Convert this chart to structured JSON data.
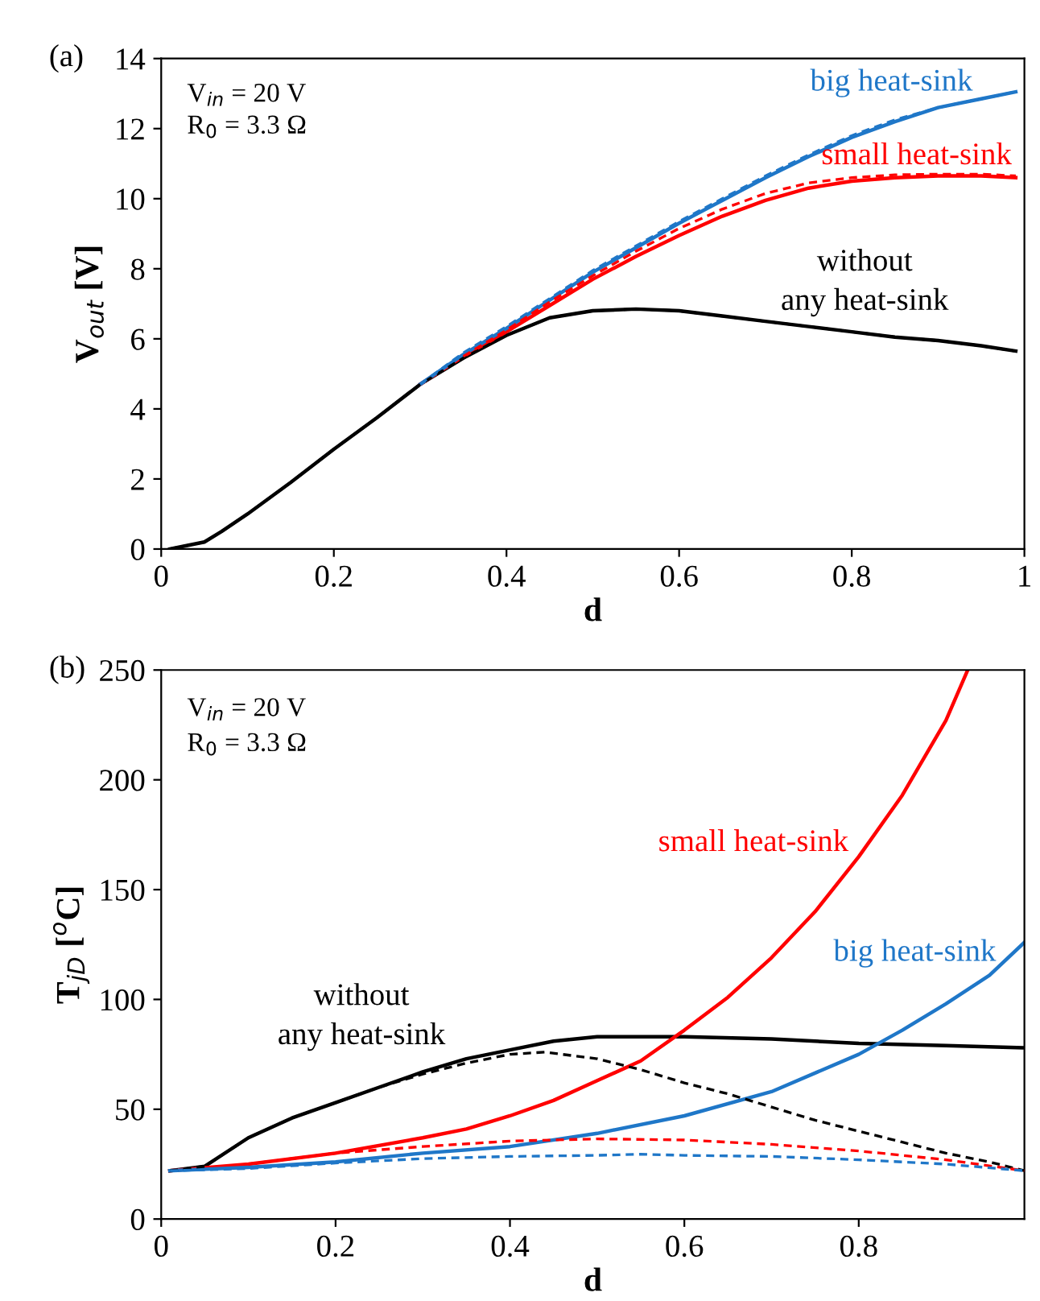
{
  "chart_data": [
    {
      "type": "line",
      "title": "(a)",
      "xlabel": "d",
      "ylabel": "V$_{out}$ [V]",
      "xlim": [
        0,
        1
      ],
      "xticks": [
        0,
        0.2,
        0.4,
        0.6,
        0.8,
        1
      ],
      "ylim": [
        0,
        14
      ],
      "yticks": [
        0,
        2,
        4,
        6,
        8,
        10,
        12,
        14
      ],
      "grid": false,
      "legend": false,
      "annotations": [
        "V$_{in}$ = 20 V",
        "R$_{0}$ = 3.3 Ω"
      ],
      "series": [
        {
          "name": "without\nany heat-sink",
          "color": "#000000",
          "line_style": "solid",
          "x": [
            0.01,
            0.05,
            0.07,
            0.1,
            0.15,
            0.2,
            0.25,
            0.3,
            0.35,
            0.4,
            0.45,
            0.5,
            0.55,
            0.6,
            0.65,
            0.7,
            0.75,
            0.8,
            0.85,
            0.9,
            0.95,
            0.99
          ],
          "values": [
            0,
            0.2,
            0.5,
            1.0,
            1.9,
            2.85,
            3.75,
            4.7,
            5.45,
            6.1,
            6.6,
            6.8,
            6.85,
            6.8,
            6.65,
            6.5,
            6.35,
            6.2,
            6.05,
            5.95,
            5.8,
            5.65
          ]
        },
        {
          "color": "#000000",
          "line_style": "dashed",
          "x": [
            0.01,
            0.05,
            0.07,
            0.1,
            0.15,
            0.2,
            0.25,
            0.3,
            0.35,
            0.4,
            0.45,
            0.5,
            0.55,
            0.6,
            0.65,
            0.7,
            0.75,
            0.8,
            0.85,
            0.9,
            0.95,
            0.99
          ],
          "values": [
            0,
            0.2,
            0.5,
            1.0,
            1.9,
            2.85,
            3.75,
            4.7,
            5.45,
            6.1,
            6.6,
            6.8,
            6.85,
            6.8,
            6.65,
            6.5,
            6.35,
            6.2,
            6.05,
            5.95,
            5.8,
            5.65
          ]
        },
        {
          "name": "small heat-sink",
          "color": "#ff0000",
          "line_style": "solid",
          "x": [
            0.3,
            0.35,
            0.4,
            0.45,
            0.5,
            0.55,
            0.6,
            0.65,
            0.7,
            0.75,
            0.8,
            0.85,
            0.9,
            0.95,
            0.99
          ],
          "values": [
            4.7,
            5.5,
            6.2,
            6.95,
            7.7,
            8.35,
            8.95,
            9.5,
            9.95,
            10.3,
            10.5,
            10.6,
            10.65,
            10.65,
            10.6
          ]
        },
        {
          "color": "#ff0000",
          "line_style": "dashed",
          "x": [
            0.35,
            0.4,
            0.45,
            0.5,
            0.55,
            0.6,
            0.65,
            0.7,
            0.75,
            0.8,
            0.85,
            0.9,
            0.95,
            0.99
          ],
          "values": [
            5.5,
            6.25,
            7.05,
            7.8,
            8.5,
            9.15,
            9.7,
            10.15,
            10.45,
            10.6,
            10.68,
            10.7,
            10.7,
            10.65
          ]
        },
        {
          "name": "big heat-sink",
          "color": "#1f77c8",
          "line_style": "solid",
          "x": [
            0.3,
            0.35,
            0.4,
            0.45,
            0.5,
            0.55,
            0.6,
            0.65,
            0.7,
            0.75,
            0.8,
            0.85,
            0.9,
            0.95,
            0.99
          ],
          "values": [
            4.7,
            5.55,
            6.3,
            7.1,
            7.9,
            8.6,
            9.3,
            9.95,
            10.6,
            11.2,
            11.75,
            12.2,
            12.6,
            12.85,
            13.05
          ]
        },
        {
          "color": "#1f77c8",
          "line_style": "dashed",
          "x": [
            0.3,
            0.35,
            0.4,
            0.45,
            0.5,
            0.55,
            0.6,
            0.65,
            0.7,
            0.75,
            0.8,
            0.85,
            0.9,
            0.95,
            0.99
          ],
          "values": [
            4.7,
            5.6,
            6.35,
            7.15,
            7.95,
            8.65,
            9.35,
            10.0,
            10.65,
            11.25,
            11.8,
            12.25,
            12.6,
            12.85,
            13.05
          ]
        }
      ]
    },
    {
      "type": "line",
      "title": "(b)",
      "xlabel": "d",
      "ylabel": "T$_{jD}$ [$^{o}$C]",
      "xlim": [
        0,
        0.99
      ],
      "xticks": [
        0,
        0.2,
        0.4,
        0.6,
        0.8
      ],
      "ylim": [
        0,
        250
      ],
      "yticks": [
        0,
        50,
        100,
        150,
        200,
        250
      ],
      "grid": false,
      "legend": false,
      "annotations": [
        "V$_{in}$ = 20 V",
        "R$_{0}$ = 3.3 Ω"
      ],
      "series": [
        {
          "name": "without\nany heat-sink",
          "color": "#000000",
          "line_style": "solid",
          "x": [
            0.01,
            0.05,
            0.1,
            0.15,
            0.2,
            0.25,
            0.3,
            0.35,
            0.4,
            0.45,
            0.5,
            0.6,
            0.7,
            0.8,
            0.9,
            0.99
          ],
          "values": [
            22,
            24,
            37,
            46,
            53,
            60,
            67,
            73,
            77,
            81,
            83,
            83,
            82,
            80,
            79,
            78
          ]
        },
        {
          "color": "#000000",
          "line_style": "dashed",
          "x": [
            0.01,
            0.05,
            0.1,
            0.15,
            0.2,
            0.25,
            0.3,
            0.35,
            0.4,
            0.44,
            0.5,
            0.55,
            0.6,
            0.65,
            0.7,
            0.75,
            0.8,
            0.85,
            0.9,
            0.95,
            0.99
          ],
          "values": [
            22,
            24,
            37,
            46,
            53,
            60,
            66,
            71,
            75,
            76,
            73,
            68,
            62,
            57,
            51,
            45,
            40,
            35,
            30,
            26,
            22
          ]
        },
        {
          "name": "small heat-sink",
          "color": "#ff0000",
          "line_style": "solid",
          "x": [
            0.01,
            0.1,
            0.2,
            0.3,
            0.35,
            0.4,
            0.45,
            0.5,
            0.55,
            0.6,
            0.65,
            0.7,
            0.75,
            0.8,
            0.85,
            0.9,
            0.925
          ],
          "values": [
            22,
            25,
            30,
            37,
            41,
            47,
            54,
            63,
            72,
            86,
            101,
            119,
            140,
            165,
            193,
            227,
            250
          ]
        },
        {
          "color": "#ff0000",
          "line_style": "dashed",
          "x": [
            0.1,
            0.2,
            0.3,
            0.4,
            0.5,
            0.6,
            0.7,
            0.8,
            0.9,
            0.99
          ],
          "values": [
            25,
            30,
            33,
            35.5,
            36.5,
            36,
            34,
            31,
            27,
            22
          ]
        },
        {
          "name": "big heat-sink",
          "color": "#1f77c8",
          "line_style": "solid",
          "x": [
            0.01,
            0.1,
            0.2,
            0.3,
            0.4,
            0.5,
            0.6,
            0.7,
            0.8,
            0.85,
            0.9,
            0.95,
            0.99
          ],
          "values": [
            22,
            23.5,
            26,
            30,
            33,
            39,
            47,
            58,
            75,
            86,
            98,
            111,
            126
          ]
        },
        {
          "color": "#1f77c8",
          "line_style": "dashed",
          "x": [
            0.01,
            0.1,
            0.2,
            0.3,
            0.4,
            0.5,
            0.55,
            0.6,
            0.7,
            0.8,
            0.9,
            0.99
          ],
          "values": [
            22,
            23,
            25.5,
            27.5,
            28.5,
            29,
            29.5,
            29,
            28.5,
            27,
            25,
            22
          ]
        }
      ]
    }
  ]
}
